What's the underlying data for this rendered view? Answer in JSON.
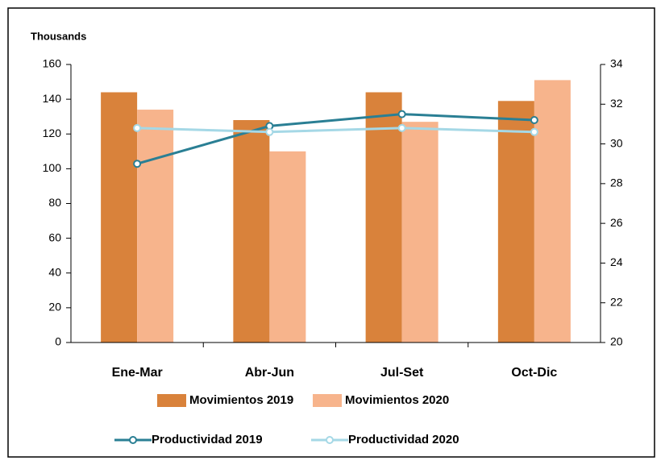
{
  "chart_data": {
    "type": "bar",
    "y_unit_label": "Thousands",
    "categories": [
      "Ene-Mar",
      "Abr-Jun",
      "Jul-Set",
      "Oct-Dic"
    ],
    "series": [
      {
        "name": "Movimientos 2019",
        "type": "bar",
        "color": "#d9823b",
        "values": [
          144,
          128,
          144,
          139
        ]
      },
      {
        "name": "Movimientos 2020",
        "type": "bar",
        "color": "#f7b48c",
        "values": [
          134,
          110,
          127,
          151
        ]
      },
      {
        "name": "Productividad 2019",
        "type": "line",
        "axis": "y2",
        "color": "#2a7f94",
        "values": [
          29.0,
          30.9,
          31.5,
          31.2
        ]
      },
      {
        "name": "Productividad 2020",
        "type": "line",
        "axis": "y2",
        "color": "#a5d8e6",
        "values": [
          30.8,
          30.6,
          30.8,
          30.6
        ]
      }
    ],
    "ylim": [
      0,
      160
    ],
    "yticks": [
      0,
      20,
      40,
      60,
      80,
      100,
      120,
      140,
      160
    ],
    "y2lim": [
      20,
      34
    ],
    "y2ticks": [
      20,
      22,
      24,
      26,
      28,
      30,
      32,
      34
    ],
    "grid": false
  }
}
